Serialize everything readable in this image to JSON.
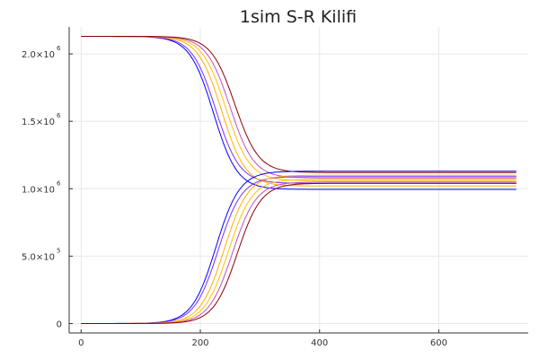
{
  "chart_data": {
    "type": "line",
    "title": "1sim S-R Kilifi",
    "xlabel": "",
    "ylabel": "",
    "xlim": [
      -20,
      750
    ],
    "ylim": [
      -70000,
      2200000
    ],
    "x_ticks": [
      {
        "value": 0,
        "label": "0"
      },
      {
        "value": 200,
        "label": "200"
      },
      {
        "value": 400,
        "label": "400"
      },
      {
        "value": 600,
        "label": "600"
      }
    ],
    "y_ticks": [
      {
        "value": 0,
        "mantissa": "0",
        "exp": ""
      },
      {
        "value": 500000,
        "mantissa": "5.0×10",
        "exp": "5"
      },
      {
        "value": 1000000,
        "mantissa": "1.0×10",
        "exp": "6"
      },
      {
        "value": 1500000,
        "mantissa": "1.5×10",
        "exp": "6"
      },
      {
        "value": 2000000,
        "mantissa": "2.0×10",
        "exp": "6"
      }
    ],
    "grid": true,
    "legend": "none",
    "x_range": [
      0,
      730
    ],
    "series": [
      {
        "kind": "S",
        "color": "#0000ff",
        "start": 2130000,
        "end": 995000,
        "mid": 222,
        "width": 20
      },
      {
        "kind": "S",
        "color": "#7b2ff7",
        "start": 2130000,
        "end": 1040000,
        "mid": 226,
        "width": 20
      },
      {
        "kind": "S",
        "color": "#ffb000",
        "start": 2130000,
        "end": 1020000,
        "mid": 236,
        "width": 20
      },
      {
        "kind": "S",
        "color": "#ffc200",
        "start": 2130000,
        "end": 1060000,
        "mid": 243,
        "width": 20
      },
      {
        "kind": "S",
        "color": "#c050c0",
        "start": 2130000,
        "end": 1080000,
        "mid": 250,
        "width": 20
      },
      {
        "kind": "S",
        "color": "#8b0000",
        "start": 2130000,
        "end": 1120000,
        "mid": 258,
        "width": 20
      },
      {
        "kind": "R",
        "color": "#0000ff",
        "start": 0,
        "end": 1130000,
        "mid": 226,
        "width": 20
      },
      {
        "kind": "R",
        "color": "#7b2ff7",
        "start": 0,
        "end": 1090000,
        "mid": 230,
        "width": 20
      },
      {
        "kind": "R",
        "color": "#ffb000",
        "start": 0,
        "end": 1100000,
        "mid": 240,
        "width": 20
      },
      {
        "kind": "R",
        "color": "#ffc200",
        "start": 0,
        "end": 1070000,
        "mid": 247,
        "width": 20
      },
      {
        "kind": "R",
        "color": "#c050c0",
        "start": 0,
        "end": 1050000,
        "mid": 254,
        "width": 20
      },
      {
        "kind": "R",
        "color": "#8b0000",
        "start": 0,
        "end": 1040000,
        "mid": 262,
        "width": 20
      }
    ]
  }
}
